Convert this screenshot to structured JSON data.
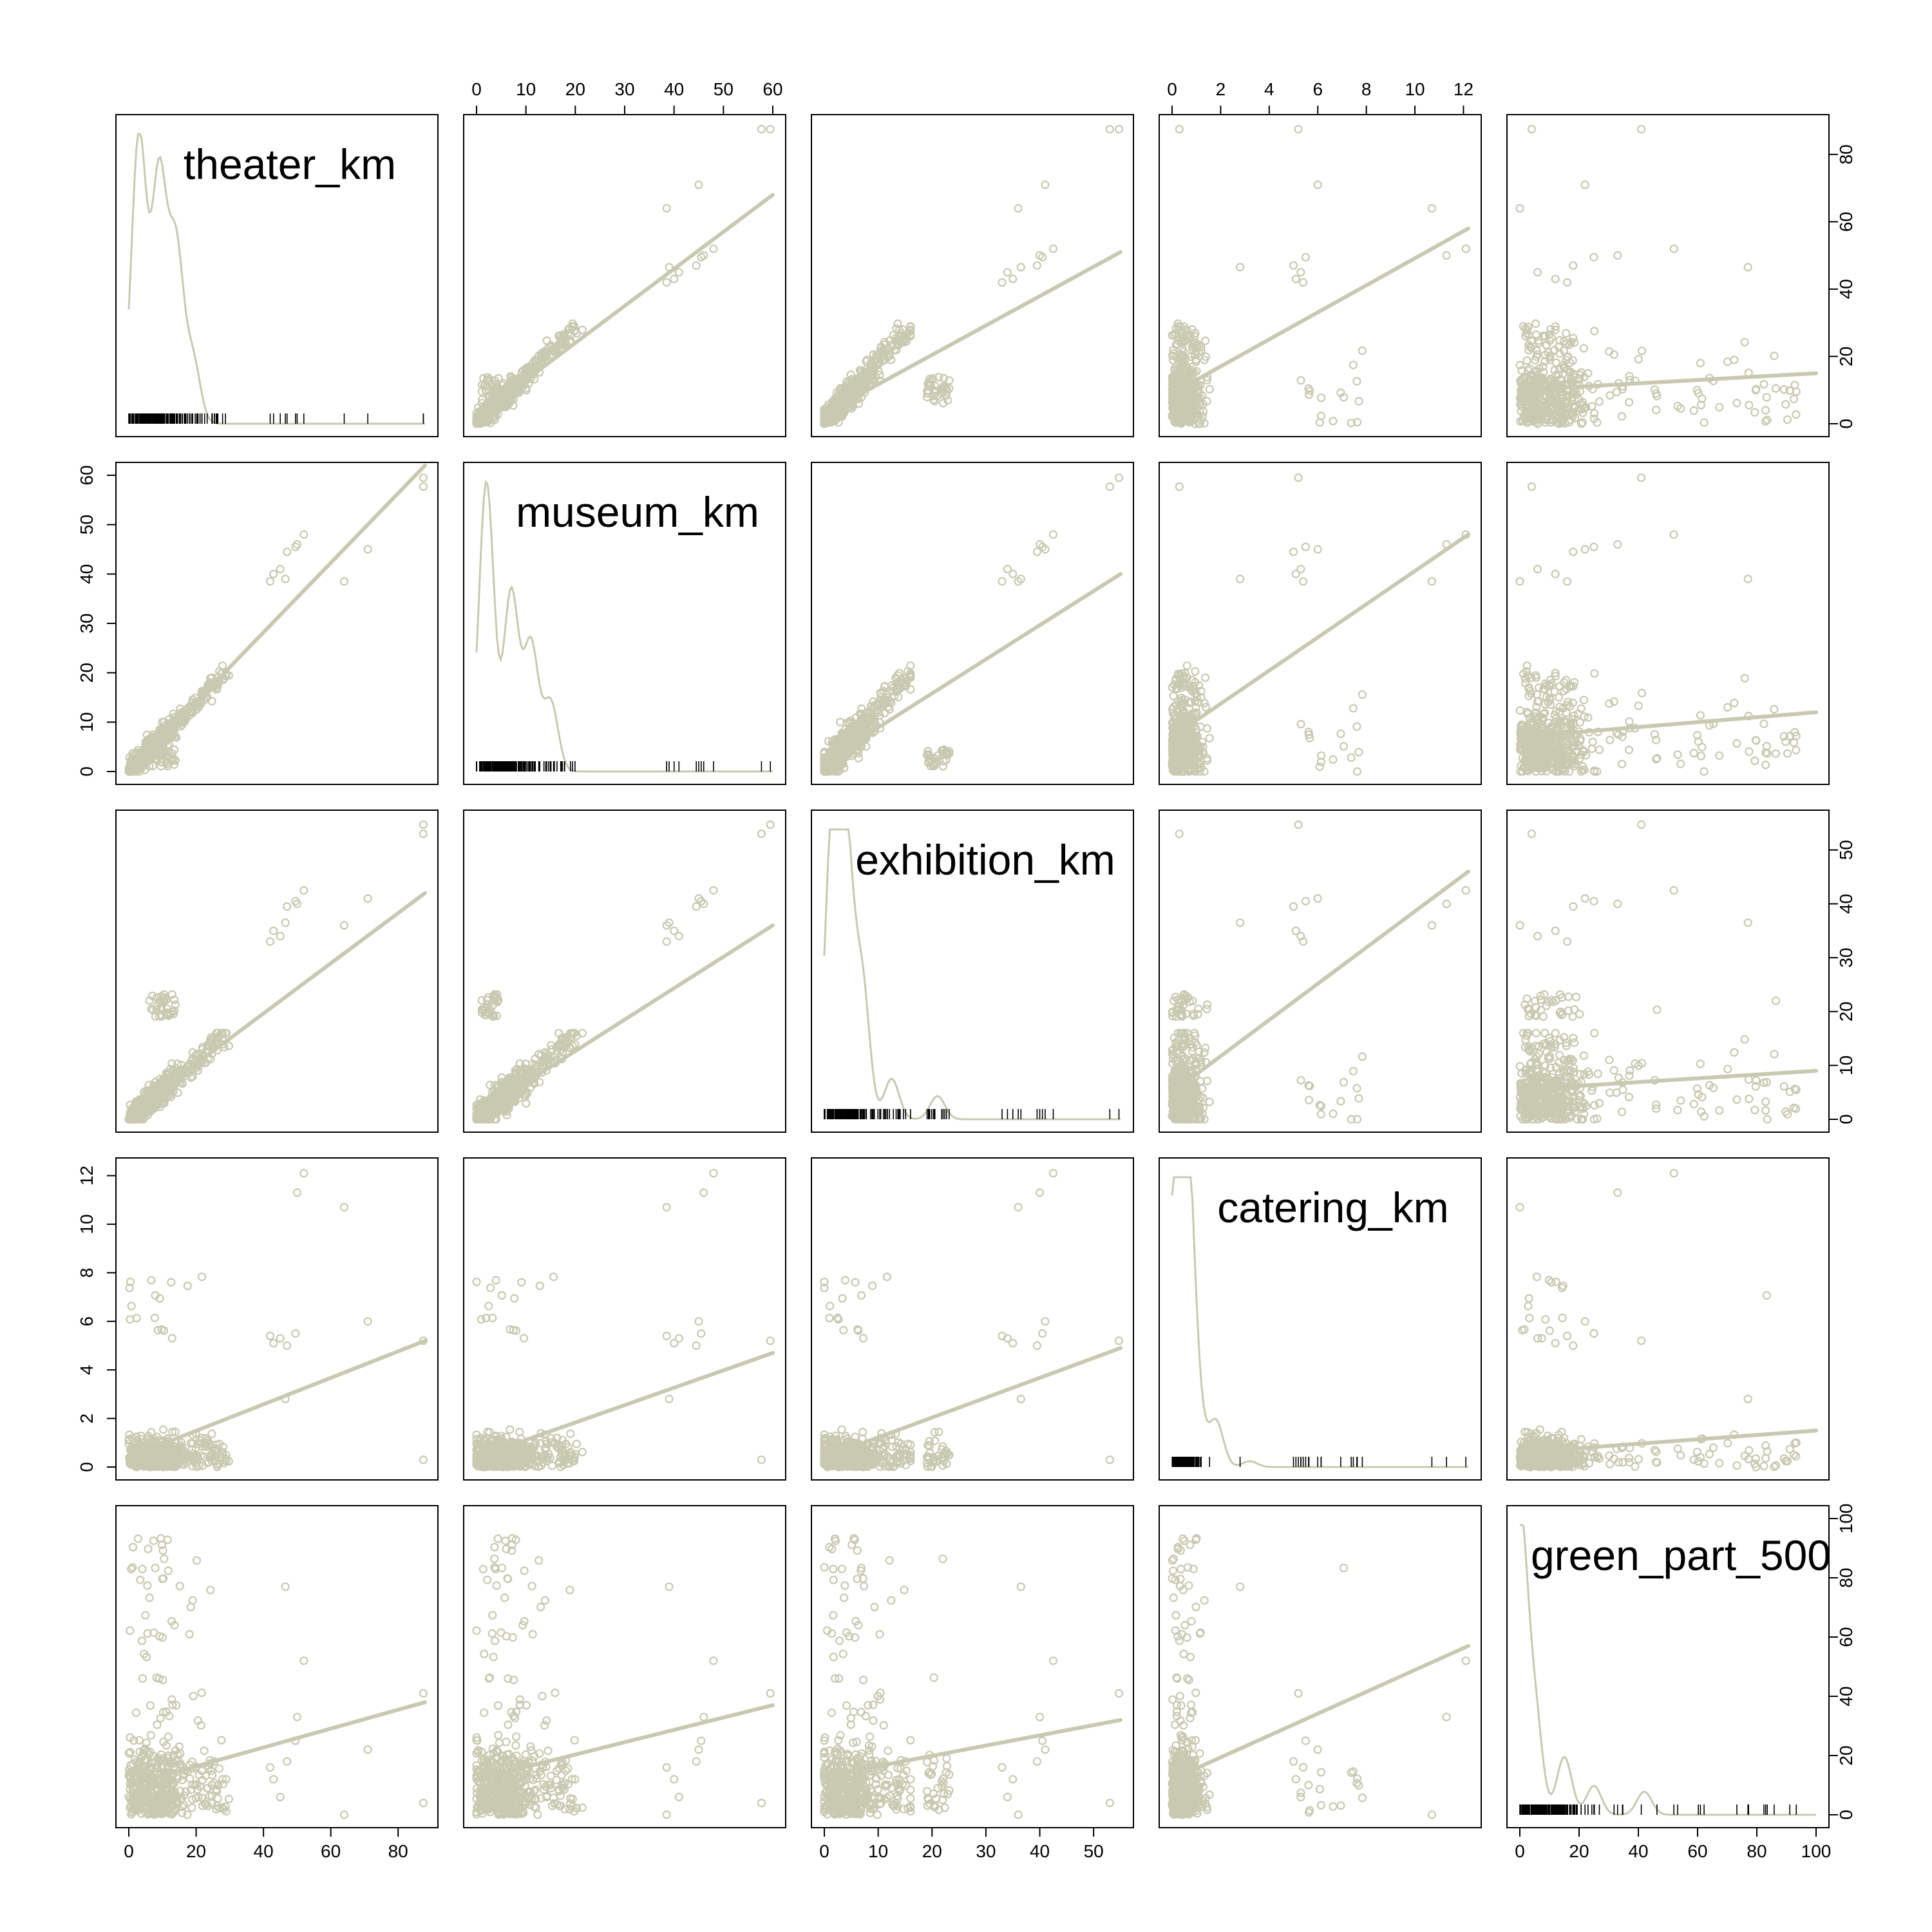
{
  "chart_data": {
    "type": "scatter",
    "subtype": "scatterplot-matrix",
    "point_color": "#c9c9b1",
    "diagonal": "kernel density with rug",
    "lines": "least-squares fit per panel",
    "variables": [
      {
        "name": "theater_km",
        "range": [
          0,
          88
        ],
        "ticks": [
          0,
          20,
          40,
          60,
          80
        ]
      },
      {
        "name": "museum_km",
        "range": [
          0,
          60
        ],
        "ticks": [
          0,
          10,
          20,
          30,
          40,
          50,
          60
        ]
      },
      {
        "name": "exhibition_km",
        "range": [
          0,
          55
        ],
        "ticks": [
          0,
          10,
          20,
          30,
          40,
          50
        ]
      },
      {
        "name": "catering_km",
        "range": [
          0,
          12.2
        ],
        "ticks": [
          0,
          2,
          4,
          6,
          8,
          10,
          12
        ]
      },
      {
        "name": "green_part_500",
        "range": [
          0,
          100
        ],
        "ticks": [
          0,
          20,
          40,
          60,
          80,
          100
        ]
      }
    ],
    "density_peaks": {
      "theater_km": [
        [
          3,
          1.0
        ],
        [
          9,
          0.85
        ],
        [
          14,
          0.6
        ],
        [
          19,
          0.22
        ]
      ],
      "museum_km": [
        [
          2,
          1.0
        ],
        [
          7,
          0.62
        ],
        [
          11,
          0.44
        ],
        [
          15,
          0.24
        ]
      ],
      "exhibition_km": [
        [
          1.5,
          1.0
        ],
        [
          4,
          0.9
        ],
        [
          7,
          0.47
        ],
        [
          12.5,
          0.14
        ],
        [
          21,
          0.08
        ]
      ],
      "catering_km": [
        [
          0.2,
          1.0
        ],
        [
          0.6,
          0.9
        ],
        [
          1.0,
          0.17
        ],
        [
          1.8,
          0.16
        ],
        [
          3.2,
          0.02
        ]
      ],
      "green_part_500": [
        [
          0,
          1.0
        ],
        [
          5,
          0.35
        ],
        [
          15,
          0.2
        ],
        [
          25,
          0.1
        ],
        [
          42,
          0.08
        ]
      ]
    },
    "regression_lines": [
      {
        "x": "museum_km",
        "y": "theater_km",
        "from": [
          0,
          2
        ],
        "to": [
          60,
          68
        ]
      },
      {
        "x": "exhibition_km",
        "y": "theater_km",
        "from": [
          0,
          3
        ],
        "to": [
          55,
          51
        ]
      },
      {
        "x": "catering_km",
        "y": "theater_km",
        "from": [
          0,
          9
        ],
        "to": [
          12.2,
          58
        ]
      },
      {
        "x": "green_part_500",
        "y": "theater_km",
        "from": [
          0,
          10
        ],
        "to": [
          100,
          15
        ]
      },
      {
        "x": "theater_km",
        "y": "museum_km",
        "from": [
          0,
          0
        ],
        "to": [
          88,
          62
        ]
      },
      {
        "x": "exhibition_km",
        "y": "museum_km",
        "from": [
          0,
          2
        ],
        "to": [
          55,
          40
        ]
      },
      {
        "x": "catering_km",
        "y": "museum_km",
        "from": [
          0,
          7
        ],
        "to": [
          12.2,
          48
        ]
      },
      {
        "x": "green_part_500",
        "y": "museum_km",
        "from": [
          0,
          7
        ],
        "to": [
          100,
          12
        ]
      },
      {
        "x": "theater_km",
        "y": "exhibition_km",
        "from": [
          0,
          1
        ],
        "to": [
          88,
          42
        ]
      },
      {
        "x": "museum_km",
        "y": "exhibition_km",
        "from": [
          0,
          1
        ],
        "to": [
          60,
          36
        ]
      },
      {
        "x": "catering_km",
        "y": "exhibition_km",
        "from": [
          0,
          5
        ],
        "to": [
          12.2,
          46
        ]
      },
      {
        "x": "green_part_500",
        "y": "exhibition_km",
        "from": [
          0,
          5.5
        ],
        "to": [
          100,
          9
        ]
      },
      {
        "x": "theater_km",
        "y": "catering_km",
        "from": [
          0,
          0.4
        ],
        "to": [
          88,
          5.2
        ]
      },
      {
        "x": "museum_km",
        "y": "catering_km",
        "from": [
          0,
          0.4
        ],
        "to": [
          60,
          4.7
        ]
      },
      {
        "x": "exhibition_km",
        "y": "catering_km",
        "from": [
          0,
          0.4
        ],
        "to": [
          55,
          4.9
        ]
      },
      {
        "x": "green_part_500",
        "y": "catering_km",
        "from": [
          0,
          0.6
        ],
        "to": [
          100,
          1.5
        ]
      },
      {
        "x": "theater_km",
        "y": "green_part_500",
        "from": [
          0,
          10
        ],
        "to": [
          88,
          38
        ]
      },
      {
        "x": "museum_km",
        "y": "green_part_500",
        "from": [
          0,
          12
        ],
        "to": [
          60,
          37
        ]
      },
      {
        "x": "exhibition_km",
        "y": "green_part_500",
        "from": [
          0,
          13
        ],
        "to": [
          55,
          32
        ]
      },
      {
        "x": "catering_km",
        "y": "green_part_500",
        "from": [
          0,
          12
        ],
        "to": [
          12.2,
          57
        ]
      }
    ],
    "outliers": [
      {
        "theater_km": 87.5,
        "museum_km": 59.5,
        "exhibition_km": 54.7,
        "catering_km": 5.2,
        "green_part_500": 41
      },
      {
        "theater_km": 87.5,
        "museum_km": 57.7,
        "exhibition_km": 53.0,
        "catering_km": 0.3,
        "green_part_500": 4
      },
      {
        "theater_km": 71.0,
        "museum_km": 45.0,
        "exhibition_km": 41.0,
        "catering_km": 6.0,
        "green_part_500": 22
      },
      {
        "theater_km": 64.0,
        "museum_km": 38.5,
        "exhibition_km": 36.0,
        "catering_km": 10.7,
        "green_part_500": 0
      },
      {
        "theater_km": 52.0,
        "museum_km": 48.0,
        "exhibition_km": 42.5,
        "catering_km": 12.1,
        "green_part_500": 52
      },
      {
        "theater_km": 50.0,
        "museum_km": 46.0,
        "exhibition_km": 40.0,
        "catering_km": 11.3,
        "green_part_500": 33
      },
      {
        "theater_km": 49.5,
        "museum_km": 45.5,
        "exhibition_km": 40.5,
        "catering_km": 5.5,
        "green_part_500": 25
      },
      {
        "theater_km": 47.0,
        "museum_km": 44.5,
        "exhibition_km": 39.5,
        "catering_km": 5.0,
        "green_part_500": 18
      },
      {
        "theater_km": 45.0,
        "museum_km": 41.0,
        "exhibition_km": 34.0,
        "catering_km": 5.3,
        "green_part_500": 6
      },
      {
        "theater_km": 43.0,
        "museum_km": 40.0,
        "exhibition_km": 35.0,
        "catering_km": 5.1,
        "green_part_500": 12
      },
      {
        "theater_km": 42.0,
        "museum_km": 38.5,
        "exhibition_km": 33.0,
        "catering_km": 5.4,
        "green_part_500": 16
      },
      {
        "theater_km": 46.5,
        "museum_km": 39.0,
        "exhibition_km": 36.5,
        "catering_km": 2.8,
        "green_part_500": 77
      }
    ]
  }
}
